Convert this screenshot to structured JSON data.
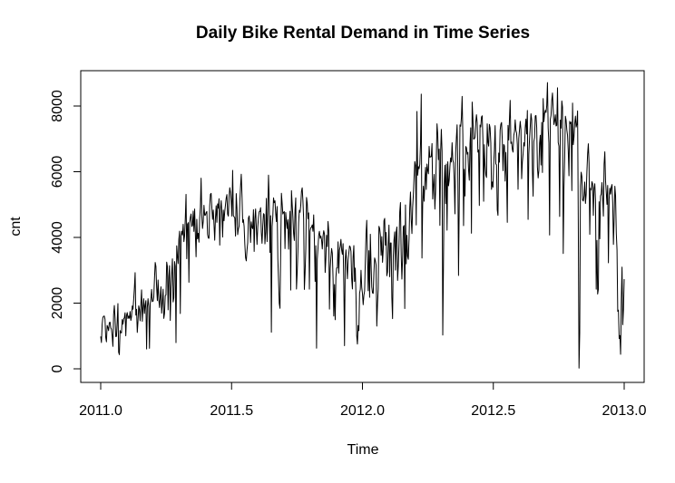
{
  "chart_data": {
    "type": "line",
    "title": "Daily Bike Rental Demand in Time Series",
    "xlabel": "Time",
    "ylabel": "cnt",
    "xlim": [
      2011.0,
      2013.0
    ],
    "ylim": [
      0,
      8700
    ],
    "xticks": [
      2011.0,
      2011.5,
      2012.0,
      2012.5,
      2013.0
    ],
    "xtick_labels": [
      "2011.0",
      "2011.5",
      "2012.0",
      "2012.5",
      "2013.0"
    ],
    "yticks": [
      0,
      2000,
      4000,
      6000,
      8000
    ],
    "ytick_labels": [
      "0",
      "2000",
      "4000",
      "6000",
      "8000"
    ],
    "grid": false,
    "legend": "none",
    "series": [
      {
        "color": "#000000",
        "x_start": 2011.0,
        "x_step": 0.0027397,
        "values": [
          985,
          801,
          1349,
          1562,
          1600,
          1606,
          1510,
          959,
          822,
          1321,
          1263,
          1162,
          1406,
          1421,
          1248,
          1204,
          1000,
          683,
          1650,
          1927,
          1543,
          981,
          986,
          1416,
          1985,
          506,
          431,
          1167,
          1098,
          1096,
          1501,
          1360,
          1526,
          1550,
          1708,
          1005,
          1623,
          1712,
          1530,
          1605,
          1538,
          1746,
          1472,
          1589,
          1913,
          1815,
          2115,
          2475,
          2927,
          1635,
          1812,
          1107,
          1450,
          1917,
          1807,
          1461,
          1969,
          2402,
          1446,
          1851,
          2134,
          1685,
          1944,
          2077,
          605,
          1872,
          2133,
          1891,
          623,
          1977,
          2132,
          2417,
          2046,
          2056,
          2192,
          2744,
          3239,
          3117,
          2471,
          2077,
          2703,
          2121,
          1865,
          2210,
          2496,
          1693,
          2028,
          2425,
          1536,
          1685,
          2227,
          2252,
          3249,
          3115,
          1795,
          2808,
          3141,
          1471,
          2455,
          2895,
          3348,
          2034,
          2162,
          3267,
          3126,
          795,
          3744,
          3429,
          3204,
          3944,
          4189,
          1683,
          4036,
          4191,
          4073,
          4400,
          3872,
          4058,
          4595,
          5312,
          3351,
          4401,
          4451,
          2633,
          4433,
          4608,
          4714,
          4333,
          4362,
          4803,
          4182,
          4864,
          4105,
          3409,
          4553,
          3958,
          4123,
          3855,
          4575,
          4917,
          5805,
          4660,
          4274,
          4492,
          4978,
          4677,
          4679,
          4758,
          4788,
          4098,
          3982,
          3974,
          4968,
          5312,
          5342,
          4906,
          4548,
          4833,
          4401,
          3915,
          4586,
          4966,
          4460,
          5020,
          4891,
          5180,
          3767,
          4844,
          5119,
          4744,
          4010,
          4835,
          4507,
          4790,
          4991,
          5202,
          5305,
          4708,
          4648,
          5225,
          5515,
          5362,
          5119,
          4649,
          6043,
          4665,
          4629,
          4592,
          4040,
          5336,
          4881,
          4086,
          4258,
          4342,
          5084,
          5538,
          5923,
          5302,
          4458,
          4541,
          4332,
          3784,
          3387,
          3285,
          3606,
          3840,
          4590,
          4656,
          4390,
          3846,
          4475,
          4302,
          4266,
          4845,
          3574,
          4576,
          4866,
          4294,
          3785,
          4326,
          4602,
          4780,
          4792,
          4905,
          4150,
          3820,
          4338,
          4725,
          4694,
          3805,
          4153,
          5191,
          3873,
          4758,
          5895,
          5130,
          3542,
          4661,
          1115,
          4334,
          4634,
          5204,
          5058,
          5115,
          4727,
          4484,
          4940,
          3351,
          2710,
          1996,
          1842,
          3544,
          5345,
          5046,
          4713,
          4763,
          4785,
          3659,
          4760,
          4511,
          4274,
          4539,
          3641,
          4352,
          4795,
          2395,
          5423,
          5010,
          4630,
          4120,
          3907,
          4839,
          5202,
          2429,
          2918,
          3570,
          4456,
          4826,
          4765,
          4985,
          5409,
          5511,
          5117,
          4563,
          2416,
          2913,
          3644,
          5217,
          5041,
          4570,
          4748,
          2424,
          4195,
          4304,
          4308,
          4381,
          4187,
          4687,
          3894,
          2659,
          3747,
          627,
          3331,
          3669,
          4068,
          4186,
          3974,
          4046,
          3926,
          3649,
          4035,
          4205,
          4109,
          2933,
          3368,
          4067,
          3717,
          4486,
          4195,
          1817,
          3053,
          3392,
          3663,
          3520,
          2765,
          1607,
          2566,
          1495,
          2792,
          3068,
          3071,
          3867,
          2914,
          3613,
          3727,
          3940,
          3614,
          3485,
          3811,
          2594,
          705,
          3322,
          3620,
          3190,
          2743,
          3310,
          3523,
          3740,
          3709,
          3577,
          2739,
          2431,
          3403,
          3750,
          2660,
          3068,
          2209,
          1011,
          754,
          1317,
          1162,
          2302,
          2423,
          2999,
          2485,
          2294,
          1951,
          2236,
          2368,
          3272,
          4098,
          4521,
          3425,
          2376,
          3598,
          2177,
          4097,
          3214,
          2493,
          2311,
          2298,
          2935,
          3376,
          3292,
          3163,
          1301,
          1977,
          2432,
          4339,
          4270,
          4075,
          3456,
          4023,
          3243,
          3624,
          4509,
          4579,
          3761,
          4151,
          2832,
          2947,
          3784,
          4375,
          2802,
          3830,
          3831,
          2169,
          1529,
          3422,
          3922,
          4169,
          3005,
          4154,
          4318,
          2689,
          3129,
          3777,
          4773,
          5062,
          3487,
          2732,
          3389,
          4322,
          4363,
          1834,
          4990,
          3194,
          4066,
          3423,
          3333,
          3956,
          4916,
          5382,
          4569,
          4118,
          4911,
          5298,
          5847,
          6312,
          6192,
          4378,
          7836,
          5892,
          6153,
          6093,
          6230,
          6871,
          8362,
          3372,
          4996,
          5558,
          5102,
          5698,
          6133,
          5459,
          6235,
          6041,
          5936,
          6772,
          6436,
          6457,
          6460,
          6857,
          5169,
          5585,
          5918,
          4862,
          5409,
          6398,
          7460,
          7132,
          6370,
          6691,
          4367,
          6565,
          7290,
          6624,
          1027,
          3214,
          5633,
          6196,
          5026,
          6233,
          4220,
          6304,
          5572,
          5740,
          6169,
          6421,
          6296,
          6883,
          6359,
          6273,
          5728,
          4717,
          6572,
          7030,
          7429,
          6118,
          2843,
          5115,
          7424,
          7384,
          7639,
          8294,
          7129,
          4359,
          6073,
          5260,
          6770,
          6734,
          6536,
          6591,
          6043,
          5743,
          6855,
          7338,
          4127,
          8120,
          7641,
          6998,
          7001,
          7055,
          7494,
          7736,
          7498,
          6598,
          6664,
          4972,
          7421,
          7363,
          7665,
          7702,
          6978,
          5099,
          6825,
          6211,
          5905,
          5823,
          7458,
          6891,
          6779,
          7442,
          7335,
          6879,
          5463,
          5687,
          5531,
          6227,
          6660,
          7403,
          6241,
          6207,
          4840,
          4672,
          6569,
          6290,
          7264,
          7446,
          7499,
          6969,
          6031,
          6830,
          6786,
          5713,
          6591,
          5870,
          4459,
          7410,
          6966,
          7592,
          8173,
          6861,
          6904,
          6685,
          6597,
          7105,
          7216,
          7580,
          7261,
          7175,
          6824,
          5464,
          7013,
          7273,
          7534,
          7286,
          5786,
          6299,
          6544,
          6883,
          6784,
          7347,
          7605,
          7148,
          7865,
          4549,
          6530,
          7006,
          7375,
          7765,
          7582,
          6053,
          5255,
          6917,
          7040,
          7697,
          7713,
          7350,
          6140,
          5810,
          6034,
          6864,
          7112,
          6203,
          7504,
          5976,
          8227,
          7525,
          7767,
          7870,
          7804,
          8009,
          8714,
          7333,
          6869,
          4073,
          7591,
          7720,
          8167,
          8395,
          7907,
          7436,
          7538,
          7733,
          7393,
          7415,
          8555,
          6889,
          6778,
          4639,
          7572,
          7328,
          8156,
          7965,
          3510,
          5478,
          6392,
          7691,
          7570,
          7282,
          7109,
          6639,
          5875,
          7534,
          7461,
          7509,
          5424,
          8090,
          6824,
          7058,
          7466,
          7693,
          7359,
          7444,
          7852,
          4459,
          22,
          1096,
          5566,
          5986,
          5847,
          5138,
          5107,
          5259,
          5686,
          5035,
          5315,
          5992,
          6536,
          6852,
          6269,
          4094,
          5495,
          5445,
          5698,
          5629,
          4669,
          5499,
          5634,
          5146,
          2425,
          3910,
          2277,
          2424,
          5087,
          3959,
          5260,
          5323,
          5668,
          5191,
          4649,
          6234,
          6606,
          5729,
          5375,
          5008,
          5582,
          3228,
          5170,
          5501,
          5319,
          5532,
          5611,
          5047,
          3786,
          4585,
          5557,
          5267,
          4128,
          3623,
          1749,
          1787,
          920,
          1013,
          441,
          2114,
          3095,
          1341,
          1796,
          2729
        ]
      }
    ]
  }
}
